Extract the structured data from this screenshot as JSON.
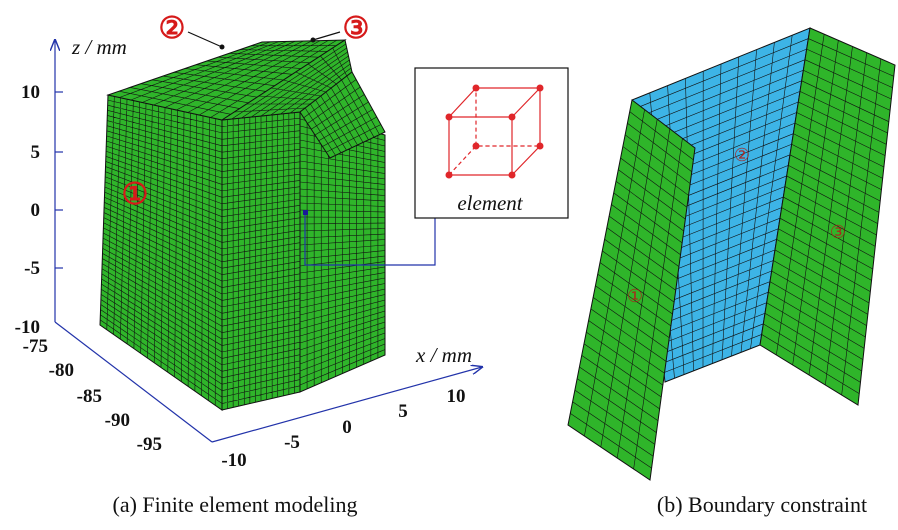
{
  "panel_a": {
    "caption": "(a) Finite element modeling",
    "z_axis_label": "z / mm",
    "x_axis_label": "x / mm",
    "z_ticks": [
      "10",
      "5",
      "0",
      "-5",
      "-10"
    ],
    "y_ticks": [
      "-75",
      "-80",
      "-85",
      "-90",
      "-95"
    ],
    "x_ticks": [
      "-10",
      "-5",
      "0",
      "5",
      "10"
    ],
    "regions": [
      "①",
      "②",
      "③"
    ],
    "inset_label": "element"
  },
  "panel_b": {
    "caption": "(b) Boundary constraint",
    "regions": [
      "①",
      "②",
      "③"
    ]
  }
}
